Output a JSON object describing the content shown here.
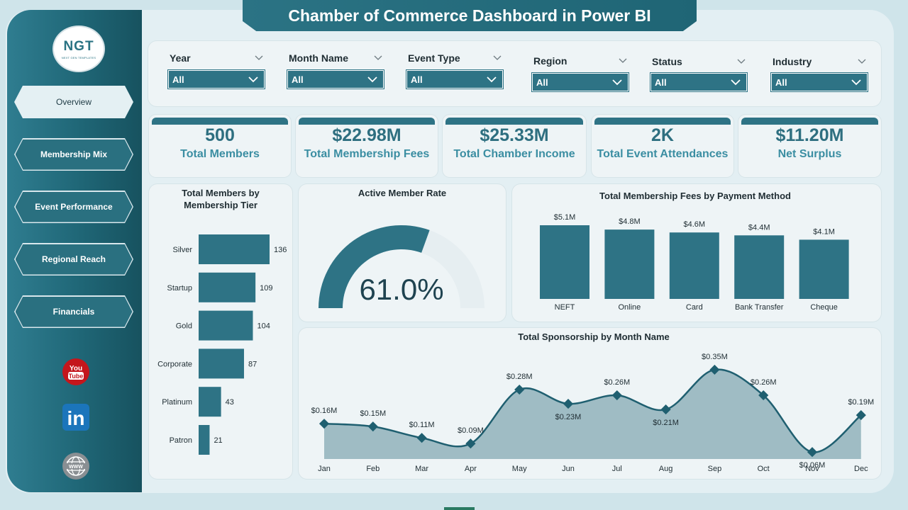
{
  "title": "Chamber of Commerce Dashboard in Power BI",
  "logo": {
    "main": "NGT",
    "sub": "NEXT GEN TEMPLATES"
  },
  "nav": [
    {
      "label": "Overview",
      "active": true
    },
    {
      "label": "Membership Mix",
      "active": false
    },
    {
      "label": "Event Performance",
      "active": false
    },
    {
      "label": "Regional Reach",
      "active": false
    },
    {
      "label": "Financials",
      "active": false
    }
  ],
  "social": [
    {
      "icon": "youtube-icon",
      "top": "You",
      "bottom": "Tube"
    },
    {
      "icon": "linkedin-icon",
      "text": "in"
    },
    {
      "icon": "www-icon",
      "text": "WWW"
    }
  ],
  "slicers": [
    {
      "title": "Year",
      "value": "All"
    },
    {
      "title": "Month Name",
      "value": "All"
    },
    {
      "title": "Event Type",
      "value": "All"
    },
    {
      "title": "Region",
      "value": "All"
    },
    {
      "title": "Status",
      "value": "All"
    },
    {
      "title": "Industry",
      "value": "All"
    }
  ],
  "kpis": [
    {
      "value": "500",
      "label": "Total Members"
    },
    {
      "value": "$22.98M",
      "label": "Total Membership Fees"
    },
    {
      "value": "$25.33M",
      "label": "Total Chamber Income"
    },
    {
      "value": "2K",
      "label": "Total Event Attendances"
    },
    {
      "value": "$11.20M",
      "label": "Net Surplus"
    }
  ],
  "colors": {
    "primary": "#2e7385",
    "sidebar": "#1f6676",
    "area": "#9fbcc4"
  },
  "chart_data": [
    {
      "type": "bar",
      "orientation": "horizontal",
      "title": "Total Members by Membership Tier",
      "categories": [
        "Silver",
        "Startup",
        "Gold",
        "Corporate",
        "Platinum",
        "Patron"
      ],
      "values": [
        136,
        109,
        104,
        87,
        43,
        21
      ]
    },
    {
      "type": "gauge",
      "title": "Active Member Rate",
      "value": 61.0,
      "value_label": "61.0%"
    },
    {
      "type": "bar",
      "title": "Total Membership Fees by Payment Method",
      "categories": [
        "NEFT",
        "Online",
        "Card",
        "Bank Transfer",
        "Cheque"
      ],
      "values": [
        5.1,
        4.8,
        4.6,
        4.4,
        4.1
      ],
      "labels": [
        "$5.1M",
        "$4.8M",
        "$4.6M",
        "$4.4M",
        "$4.1M"
      ]
    },
    {
      "type": "area",
      "title": "Total Sponsorship by Month Name",
      "categories": [
        "Jan",
        "Feb",
        "Mar",
        "Apr",
        "May",
        "Jun",
        "Jul",
        "Aug",
        "Sep",
        "Oct",
        "Nov",
        "Dec"
      ],
      "values": [
        0.16,
        0.15,
        0.11,
        0.09,
        0.28,
        0.23,
        0.26,
        0.21,
        0.35,
        0.26,
        0.06,
        0.19
      ],
      "labels": [
        "$0.16M",
        "$0.15M",
        "$0.11M",
        "$0.09M",
        "$0.28M",
        "$0.23M",
        "$0.26M",
        "$0.21M",
        "$0.35M",
        "$0.26M",
        "$0.06M",
        "$0.19M"
      ]
    }
  ]
}
